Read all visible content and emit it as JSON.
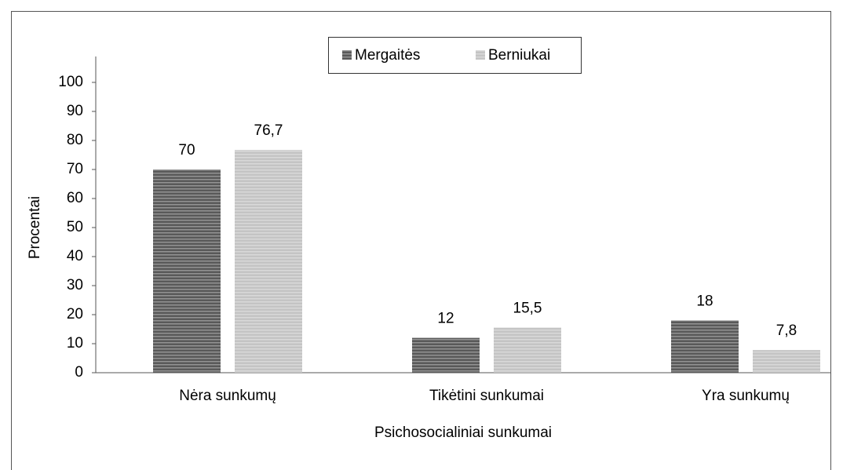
{
  "chart_data": {
    "type": "bar",
    "x_label": "Psichosocialiniai sunkumai",
    "y_label": "Procentai",
    "categories": [
      "Nėra sunkumų",
      "Tikėtini sunkumai",
      "Yra sunkumų"
    ],
    "series": [
      {
        "name": "Mergaitės",
        "color": "#595959",
        "values": [
          70,
          12,
          18
        ],
        "value_labels": [
          "70",
          "12",
          "18"
        ]
      },
      {
        "name": "Berniukai",
        "color": "#c4c4c4",
        "values": [
          76.7,
          15.5,
          7.8
        ],
        "value_labels": [
          "76,7",
          "15,5",
          "7,8"
        ]
      }
    ],
    "ylim": [
      0,
      100
    ],
    "yticks": [
      0,
      10,
      20,
      30,
      40,
      50,
      60,
      70,
      80,
      90,
      100
    ],
    "grid": false,
    "legend": "top"
  }
}
